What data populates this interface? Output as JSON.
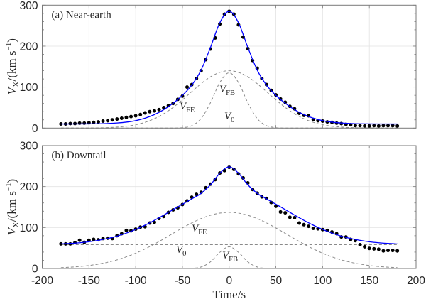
{
  "chart_data": [
    {
      "type": "scatter+line",
      "panel_label": "(a) Near-earth",
      "ylabel": {
        "symbol": "V",
        "subscript": "X",
        "unit_text": "/(km  s",
        "superscript": "−1",
        "close": ")"
      },
      "xlabel": "",
      "xlim": [
        -200,
        200
      ],
      "ylim": [
        0,
        300
      ],
      "x_ticks": [
        "-200",
        "-150",
        "-100",
        "-50",
        "0",
        "50",
        "100",
        "150",
        "200"
      ],
      "x_tick_labels_shown": false,
      "y_ticks": [
        "0",
        "100",
        "200",
        "300"
      ],
      "grid": true,
      "annotations": [
        {
          "symbol": "V",
          "subscript": "FE"
        },
        {
          "symbol": "V",
          "subscript": "FB"
        },
        {
          "symbol": "V",
          "subscript": "0"
        }
      ],
      "observed": {
        "x_start": -180,
        "x_step": 5,
        "color": "#000000",
        "y": [
          10,
          10,
          11,
          11,
          12,
          12,
          13,
          14,
          15,
          17,
          18,
          20,
          22,
          24,
          26,
          28,
          30,
          33,
          37,
          40,
          42,
          45,
          50,
          55,
          60,
          70,
          78,
          100,
          106,
          121,
          140,
          167,
          193,
          220,
          254,
          278,
          285,
          278,
          252,
          222,
          194,
          165,
          146,
          121,
          106,
          92,
          81,
          71,
          63,
          53,
          47,
          36,
          31,
          30,
          21,
          18,
          17,
          15,
          14,
          12,
          11,
          9,
          8,
          6,
          6,
          5,
          5,
          6,
          5,
          6,
          6,
          6,
          5
        ]
      },
      "model_x_start": -180,
      "model_x_step": 10,
      "fit": {
        "color": "#0000ff",
        "y": [
          10,
          10,
          10.1,
          10.2,
          10.5,
          11.2,
          12.4,
          14.5,
          18.2,
          24.1,
          32.8,
          44.9,
          60.5,
          79.9,
          104.8,
          141.8,
          196.8,
          257.1,
          285,
          257.1,
          196.8,
          141.8,
          104.8,
          79.9,
          60.5,
          44.9,
          32.8,
          24.1,
          18.2,
          14.5,
          12.4,
          11.2,
          10.5,
          10.2,
          10.1,
          10,
          10
        ]
      },
      "V_FE": {
        "color": "#8a8a8a",
        "y": [
          0,
          0,
          0.1,
          0.2,
          0.5,
          1.2,
          2.4,
          4.5,
          8.2,
          14.1,
          22.8,
          34.9,
          50.4,
          68.9,
          88.9,
          108.5,
          125,
          136,
          140,
          136,
          125,
          108.5,
          88.9,
          68.9,
          50.4,
          34.9,
          22.8,
          14.1,
          8.2,
          4.5,
          2.4,
          1.2,
          0.5,
          0.2,
          0.1,
          0,
          0
        ]
      },
      "V_FB": {
        "color": "#8a8a8a",
        "y": [
          0,
          0,
          0,
          0,
          0,
          0,
          0,
          0,
          0,
          0,
          0,
          0,
          0.1,
          1,
          5.9,
          23.3,
          61.8,
          111.1,
          135,
          111.1,
          61.8,
          23.3,
          5.9,
          1,
          0.1,
          0,
          0,
          0,
          0,
          0,
          0,
          0,
          0,
          0,
          0,
          0,
          0
        ]
      },
      "V_0": {
        "color": "#8a8a8a",
        "value": 10
      }
    },
    {
      "type": "scatter+line",
      "panel_label": "(b) Downtail",
      "ylabel": {
        "symbol": "V",
        "subscript": "X",
        "unit_text": "/(km  s",
        "superscript": "−1",
        "close": ")"
      },
      "xlabel": "Time/s",
      "xlim": [
        -200,
        200
      ],
      "ylim": [
        0,
        300
      ],
      "x_ticks": [
        "-200",
        "-150",
        "-100",
        "-50",
        "0",
        "50",
        "100",
        "150",
        "200"
      ],
      "x_tick_labels_shown": true,
      "y_ticks": [
        "0",
        "100",
        "200",
        "300"
      ],
      "grid": true,
      "annotations": [
        {
          "symbol": "V",
          "subscript": "FE"
        },
        {
          "symbol": "V",
          "subscript": "0"
        },
        {
          "symbol": "V",
          "subscript": "FB"
        }
      ],
      "observed": {
        "x_start": -180,
        "x_step": 5,
        "color": "#000000",
        "y": [
          60,
          60,
          60,
          63,
          69,
          64,
          69,
          71,
          70,
          73,
          74,
          73,
          80,
          85,
          93,
          92,
          96,
          101,
          102,
          111,
          113,
          122,
          127,
          137,
          143,
          148,
          156,
          165,
          174,
          181,
          186,
          197,
          206,
          217,
          233,
          239,
          247,
          242,
          231,
          221,
          209,
          193,
          184,
          175,
          171,
          161,
          152,
          138,
          136,
          125,
          124,
          111,
          107,
          103,
          98,
          97,
          95,
          93,
          89,
          85,
          77,
          77,
          71,
          68,
          58,
          53,
          49,
          48,
          47,
          43,
          44,
          44,
          43
        ]
      },
      "model_x_start": -180,
      "model_x_step": 10,
      "fit": {
        "color": "#0000ff",
        "y": [
          60,
          61.2,
          62.9,
          65.3,
          68.7,
          73.2,
          79,
          86.4,
          95.3,
          105.8,
          117.6,
          130.4,
          143.8,
          157,
          169.8,
          183.5,
          204.2,
          232.6,
          248,
          232.6,
          204.2,
          183.5,
          169.8,
          157,
          143.8,
          130.4,
          117.6,
          105.8,
          95.3,
          86.4,
          79,
          73.2,
          68.7,
          65.3,
          62.9,
          61.2,
          60
        ]
      },
      "V_FE": {
        "color": "#8a8a8a",
        "y": [
          2,
          3.2,
          4.9,
          7.3,
          10.7,
          15.2,
          21,
          28.4,
          37.3,
          47.8,
          59.6,
          72.4,
          85.8,
          99,
          111.3,
          121.8,
          130,
          135.2,
          137,
          135.2,
          130,
          121.8,
          111.3,
          99,
          85.8,
          72.4,
          59.6,
          47.8,
          37.3,
          28.4,
          21,
          15.2,
          10.7,
          7.3,
          4.9,
          3.2,
          2
        ]
      },
      "V_FB": {
        "color": "#8a8a8a",
        "y": [
          0,
          0,
          0,
          0,
          0,
          0,
          0,
          0,
          0,
          0,
          0,
          0,
          0,
          0,
          0.5,
          3.7,
          16.2,
          39.4,
          53,
          39.4,
          16.2,
          3.7,
          0.5,
          0,
          0,
          0,
          0,
          0,
          0,
          0,
          0,
          0,
          0,
          0,
          0,
          0,
          0
        ]
      },
      "V_0": {
        "color": "#8a8a8a",
        "value": 58
      }
    }
  ]
}
